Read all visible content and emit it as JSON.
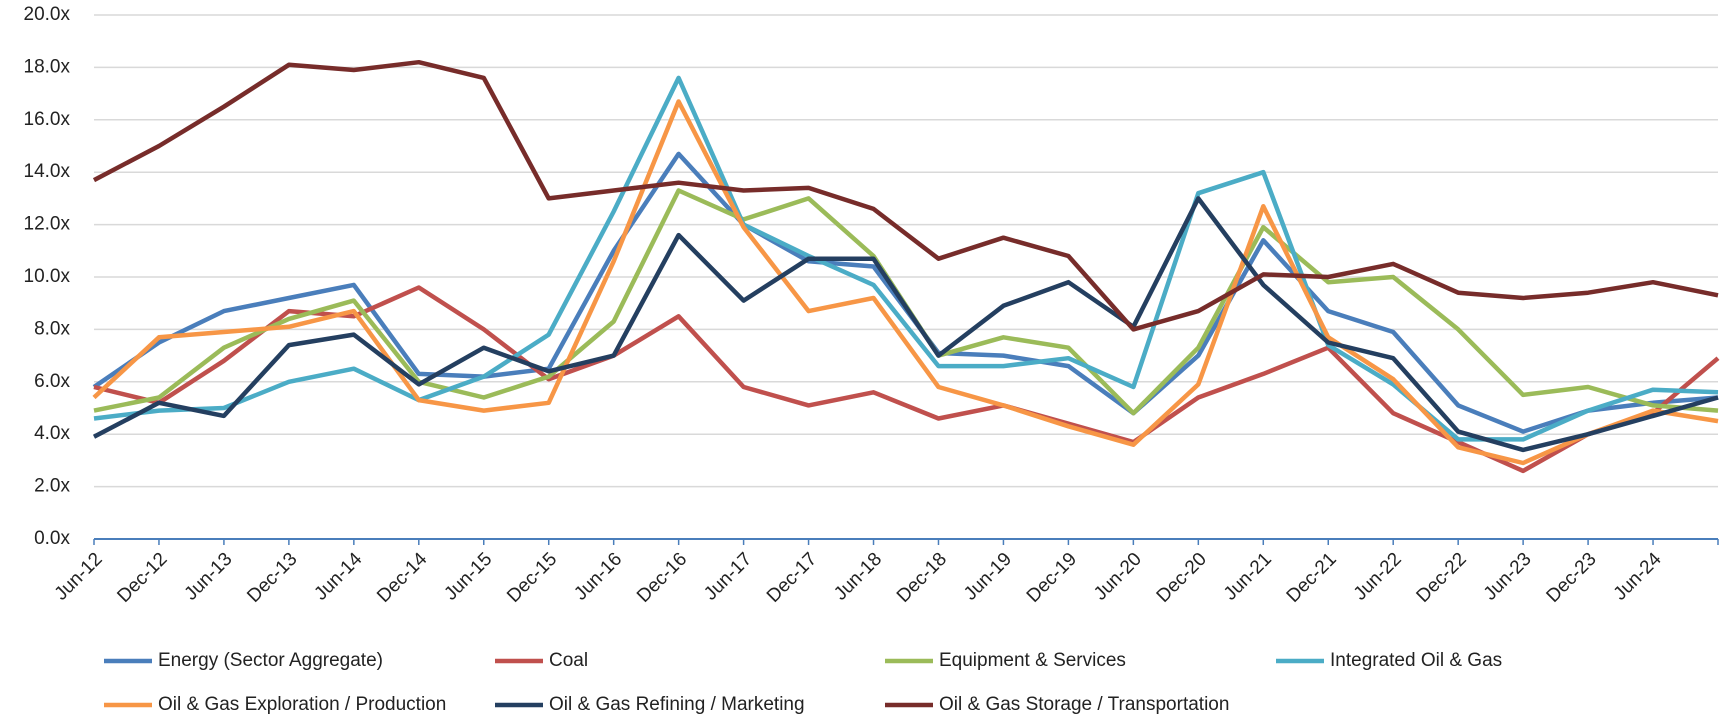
{
  "chart_data": {
    "type": "line",
    "categories": [
      "Jun-12",
      "Dec-12",
      "Jun-13",
      "Dec-13",
      "Jun-14",
      "Dec-14",
      "Jun-15",
      "Dec-15",
      "Jun-16",
      "Dec-16",
      "Jun-17",
      "Dec-17",
      "Jun-18",
      "Dec-18",
      "Jun-19",
      "Dec-19",
      "Jun-20",
      "Dec-20",
      "Jun-21",
      "Dec-21",
      "Jun-22",
      "Dec-22",
      "Jun-23",
      "Dec-23",
      "Jun-24",
      null
    ],
    "ylim": [
      0,
      20
    ],
    "yticks": [
      {
        "value": 0,
        "label": "0.0x"
      },
      {
        "value": 2,
        "label": "2.0x"
      },
      {
        "value": 4,
        "label": "4.0x"
      },
      {
        "value": 6,
        "label": "6.0x"
      },
      {
        "value": 8,
        "label": "8.0x"
      },
      {
        "value": 10,
        "label": "10.0x"
      },
      {
        "value": 12,
        "label": "12.0x"
      },
      {
        "value": 14,
        "label": "14.0x"
      },
      {
        "value": 16,
        "label": "16.0x"
      },
      {
        "value": 18,
        "label": "18.0x"
      },
      {
        "value": 20,
        "label": "20.0x"
      }
    ],
    "grid": true,
    "legend": "bottom",
    "series": [
      {
        "name": "Energy (Sector Aggregate)",
        "color": "#4a7ebb",
        "values": [
          5.8,
          7.5,
          8.7,
          9.2,
          9.7,
          6.3,
          6.2,
          6.5,
          11.0,
          14.7,
          12.0,
          10.6,
          10.4,
          7.1,
          7.0,
          6.6,
          4.8,
          7.0,
          11.4,
          8.7,
          7.9,
          5.1,
          4.1,
          4.9,
          5.2,
          5.4
        ]
      },
      {
        "name": "Coal",
        "color": "#c0504d",
        "values": [
          5.8,
          5.2,
          6.8,
          8.7,
          8.5,
          9.6,
          8.0,
          6.1,
          7.0,
          8.5,
          5.8,
          5.1,
          5.6,
          4.6,
          5.1,
          4.4,
          3.7,
          5.4,
          6.3,
          7.3,
          4.8,
          3.7,
          2.6,
          4.0,
          4.8,
          6.9
        ]
      },
      {
        "name": "Equipment & Services",
        "color": "#9bbb59",
        "values": [
          4.9,
          5.4,
          7.3,
          8.4,
          9.1,
          6.0,
          5.4,
          6.2,
          8.3,
          13.3,
          12.2,
          13.0,
          10.8,
          7.0,
          7.7,
          7.3,
          4.8,
          7.3,
          11.9,
          9.8,
          10.0,
          8.0,
          5.5,
          5.8,
          5.1,
          4.9
        ]
      },
      {
        "name": "Integrated Oil & Gas",
        "color": "#4bacc6",
        "values": [
          4.6,
          4.9,
          5.0,
          6.0,
          6.5,
          5.3,
          6.2,
          7.8,
          12.5,
          17.6,
          12.0,
          10.8,
          9.7,
          6.6,
          6.6,
          6.9,
          5.8,
          13.2,
          14.0,
          7.4,
          5.9,
          3.8,
          3.8,
          4.9,
          5.7,
          5.6
        ]
      },
      {
        "name": "Oil & Gas Exploration / Production",
        "color": "#f79646",
        "values": [
          5.4,
          7.7,
          7.9,
          8.1,
          8.7,
          5.3,
          4.9,
          5.2,
          10.6,
          16.7,
          11.9,
          8.7,
          9.2,
          5.8,
          5.1,
          4.3,
          3.6,
          5.9,
          12.7,
          7.7,
          6.1,
          3.5,
          2.9,
          4.0,
          4.9,
          4.5
        ]
      },
      {
        "name": "Oil & Gas Refining / Marketing",
        "color": "#243f60",
        "values": [
          3.9,
          5.2,
          4.7,
          7.4,
          7.8,
          5.9,
          7.3,
          6.4,
          7.0,
          11.6,
          9.1,
          10.7,
          10.7,
          7.0,
          8.9,
          9.8,
          8.1,
          13.0,
          9.7,
          7.5,
          6.9,
          4.1,
          3.4,
          4.0,
          4.7,
          5.4
        ]
      },
      {
        "name": "Oil & Gas Storage / Transportation",
        "color": "#772c2a",
        "values": [
          13.7,
          15.0,
          16.5,
          18.1,
          17.9,
          18.2,
          17.6,
          13.0,
          13.3,
          13.6,
          13.3,
          13.4,
          12.6,
          10.7,
          11.5,
          10.8,
          8.0,
          8.7,
          10.1,
          10.0,
          10.5,
          9.4,
          9.2,
          9.4,
          9.8,
          9.3
        ]
      }
    ]
  }
}
